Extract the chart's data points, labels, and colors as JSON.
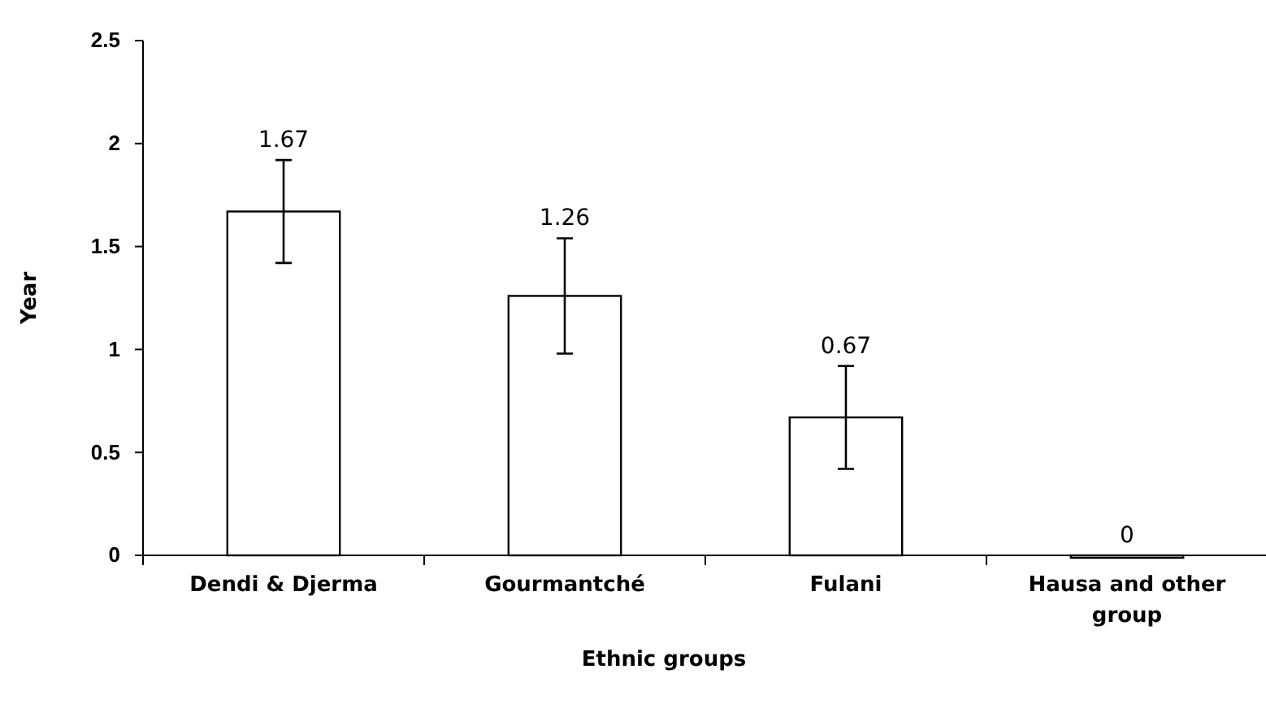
{
  "chart_data": {
    "type": "bar",
    "xlabel": "Ethnic groups",
    "ylabel": "Year",
    "categories": [
      "Dendi & Djerma",
      "Gourmantché",
      "Fulani",
      "Hausa and other group"
    ],
    "values": [
      1.67,
      1.26,
      0.67,
      0
    ],
    "errors": [
      0.25,
      0.28,
      0.25,
      null
    ],
    "color": "#ffffff",
    "ylim": [
      0,
      2.5
    ],
    "yticks": [
      0,
      0.5,
      1,
      1.5,
      2,
      2.5
    ],
    "grid": false,
    "data_labels": true
  }
}
